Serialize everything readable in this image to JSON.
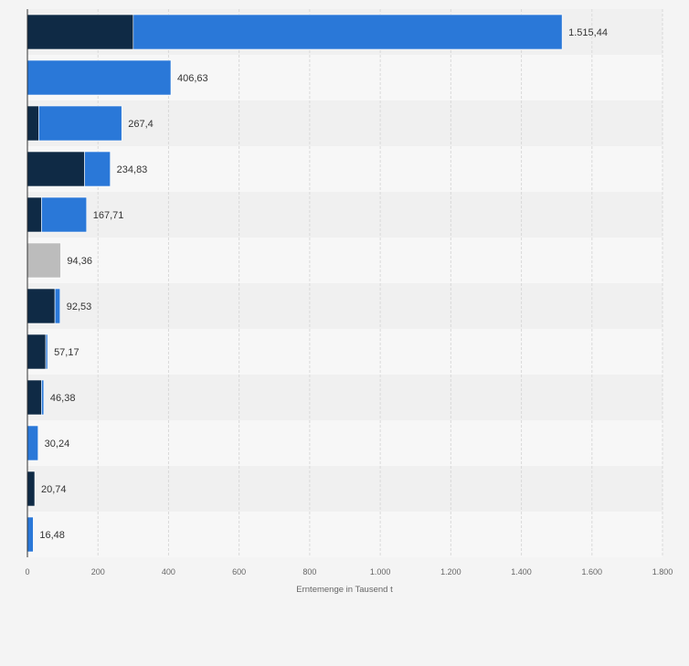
{
  "chart_data": {
    "type": "bar",
    "orientation": "horizontal",
    "stacked": true,
    "title": "",
    "xlabel": "Erntemenge in Tausend t",
    "ylabel": "",
    "xlim": [
      0,
      1800
    ],
    "xticks": [
      "0",
      "200",
      "400",
      "600",
      "800",
      "1.000",
      "1.200",
      "1.400",
      "1.600",
      "1.800"
    ],
    "xtick_values": [
      0,
      200,
      400,
      600,
      800,
      1000,
      1200,
      1400,
      1600,
      1800
    ],
    "grid": true,
    "categories": [
      "",
      "",
      "",
      "",
      "",
      "",
      "",
      "",
      "",
      "",
      "",
      ""
    ],
    "series": [
      {
        "color": "#0f2a45",
        "values": [
          300,
          0,
          32,
          162,
          40,
          0,
          78,
          52,
          40,
          0,
          20.74,
          0
        ]
      },
      {
        "color": "#2a78d8",
        "values": [
          1215.44,
          406.63,
          235.4,
          72.83,
          127.71,
          0,
          14.53,
          5.17,
          6.38,
          30.24,
          0,
          16.48
        ]
      },
      {
        "color": "#bcbcbc",
        "values": [
          0,
          0,
          0,
          0,
          0,
          94.36,
          0,
          0,
          0,
          0,
          0,
          0
        ]
      }
    ],
    "totals": [
      1515.44,
      406.63,
      267.4,
      234.83,
      167.71,
      94.36,
      92.53,
      57.17,
      46.38,
      30.24,
      20.74,
      16.48
    ],
    "total_labels": [
      "1.515,44",
      "406,63",
      "267,4",
      "234,83",
      "167,71",
      "94,36",
      "92,53",
      "57,17",
      "46,38",
      "30,24",
      "20,74",
      "16,48"
    ]
  }
}
